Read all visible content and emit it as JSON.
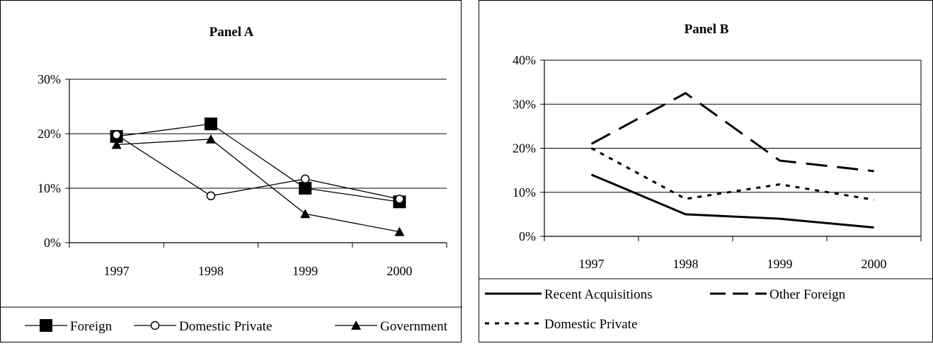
{
  "panels": [
    {
      "type": "line",
      "title": "Panel A",
      "categories": [
        "1997",
        "1998",
        "1999",
        "2000"
      ],
      "ylim": [
        0,
        30
      ],
      "yticks": [
        "0%",
        "10%",
        "20%",
        "30%"
      ],
      "ytick_values": [
        0,
        10,
        20,
        30
      ],
      "grid": true,
      "legend": "bottom",
      "series": [
        {
          "name": "Foreign",
          "values": [
            19.5,
            21.8,
            10.0,
            7.5
          ],
          "marker": "square",
          "dash": "solid"
        },
        {
          "name": "Domestic Private",
          "values": [
            19.8,
            8.6,
            11.7,
            8.0
          ],
          "marker": "circle",
          "dash": "solid"
        },
        {
          "name": "Government",
          "values": [
            18.0,
            19.0,
            5.3,
            2.0
          ],
          "marker": "triangle",
          "dash": "solid"
        }
      ]
    },
    {
      "type": "line",
      "title": "Panel B",
      "categories": [
        "1997",
        "1998",
        "1999",
        "2000"
      ],
      "ylim": [
        0,
        40
      ],
      "yticks": [
        "0%",
        "10%",
        "20%",
        "30%",
        "40%"
      ],
      "ytick_values": [
        0,
        10,
        20,
        30,
        40
      ],
      "grid": true,
      "legend": "bottom",
      "series": [
        {
          "name": "Recent Acquisitions",
          "values": [
            14.0,
            5.0,
            4.0,
            2.0
          ],
          "marker": "none",
          "dash": "solid"
        },
        {
          "name": "Other Foreign",
          "values": [
            21.0,
            32.5,
            17.2,
            14.8
          ],
          "marker": "none",
          "dash": "long"
        },
        {
          "name": "Domestic Private",
          "values": [
            20.0,
            8.5,
            11.8,
            8.3
          ],
          "marker": "none",
          "dash": "dot"
        }
      ]
    }
  ]
}
